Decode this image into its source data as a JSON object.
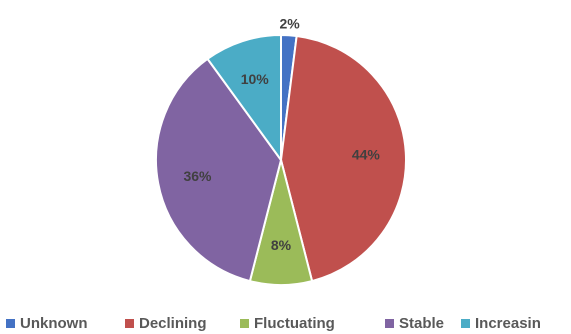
{
  "chart_data": {
    "type": "pie",
    "slices": [
      {
        "label": "Unknown",
        "value": 2,
        "display": "2%",
        "color": "#4472C4"
      },
      {
        "label": "Declining",
        "value": 44,
        "display": "44%",
        "color": "#C0504D"
      },
      {
        "label": "Fluctuating",
        "value": 8,
        "display": "8%",
        "color": "#9BBB59"
      },
      {
        "label": "Stable",
        "value": 36,
        "display": "36%",
        "color": "#8064A2"
      },
      {
        "label": "Increasin",
        "value": 10,
        "display": "10%",
        "color": "#4BACC6"
      }
    ],
    "legend_position": "bottom",
    "title": ""
  }
}
